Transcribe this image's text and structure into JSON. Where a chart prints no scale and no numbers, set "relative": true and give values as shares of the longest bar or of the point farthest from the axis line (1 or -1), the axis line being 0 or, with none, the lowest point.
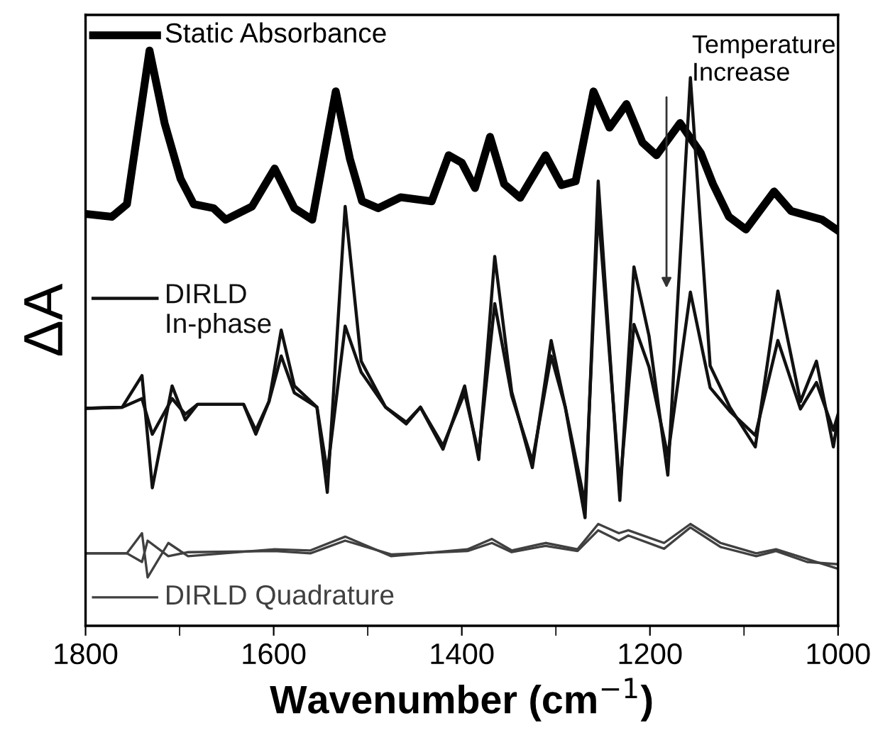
{
  "chart_data": {
    "type": "line",
    "relative": true,
    "legend": "left",
    "xlabel": "Wavenumber (cm$^{−1}$)",
    "ylabel": "ΔA",
    "xlim": [
      1800,
      1000
    ],
    "xticks": [
      1800,
      {
        "value": 1700,
        "label": null
      },
      1600,
      {
        "value": 1500,
        "label": null
      },
      1400,
      {
        "value": 1300,
        "label": null
      },
      1200,
      {
        "value": 1100,
        "label": null
      },
      1000
    ],
    "annotations": [
      "Temperature\nIncrease"
    ],
    "series": [
      {
        "name": "Static Absorbance",
        "color": "#000000",
        "x": [
          1800,
          1772,
          1756,
          1732,
          1716,
          1699,
          1685,
          1664,
          1651,
          1623,
          1599,
          1578,
          1559,
          1534,
          1519,
          1506,
          1489,
          1465,
          1432,
          1414,
          1400,
          1386,
          1370,
          1355,
          1338,
          1311,
          1294,
          1279,
          1260,
          1243,
          1225,
          1208,
          1193,
          1168,
          1146,
          1133,
          1116,
          1098,
          1068,
          1050,
          1017,
          1000
        ],
        "values": [
          0.716,
          0.711,
          0.733,
          1.0,
          0.874,
          0.777,
          0.733,
          0.726,
          0.706,
          0.729,
          0.795,
          0.726,
          0.706,
          0.929,
          0.812,
          0.738,
          0.726,
          0.745,
          0.738,
          0.818,
          0.805,
          0.761,
          0.85,
          0.768,
          0.744,
          0.818,
          0.766,
          0.773,
          0.929,
          0.866,
          0.907,
          0.84,
          0.818,
          0.874,
          0.822,
          0.768,
          0.711,
          0.689,
          0.755,
          0.721,
          0.706,
          0.687
        ]
      },
      {
        "name": "DIRLD\nIn-phase",
        "color": "#111111",
        "x": [
          1800,
          1761,
          1740,
          1729,
          1708,
          1694,
          1681,
          1632,
          1619,
          1605,
          1592,
          1578,
          1554,
          1543,
          1524,
          1507,
          1481,
          1459,
          1444,
          1420,
          1397,
          1382,
          1365,
          1347,
          1325,
          1305,
          1290,
          1269,
          1255,
          1232,
          1217,
          1201,
          1181,
          1157,
          1136,
          1115,
          1088,
          1064,
          1040,
          1023,
          1005,
          1000
        ],
        "values": [
          0.378,
          0.38,
          0.435,
          0.24,
          0.417,
          0.358,
          0.385,
          0.385,
          0.333,
          0.39,
          0.514,
          0.417,
          0.38,
          0.232,
          0.729,
          0.46,
          0.38,
          0.351,
          0.38,
          0.307,
          0.417,
          0.289,
          0.642,
          0.407,
          0.275,
          0.496,
          0.38,
          0.188,
          0.773,
          0.218,
          0.624,
          0.504,
          0.262,
          0.953,
          0.452,
          0.38,
          0.311,
          0.582,
          0.39,
          0.46,
          0.311,
          0.363
        ]
      },
      {
        "color": "#111111",
        "x": [
          1800,
          1761,
          1740,
          1729,
          1708,
          1694,
          1681,
          1632,
          1619,
          1605,
          1592,
          1578,
          1554,
          1543,
          1524,
          1507,
          1481,
          1459,
          1444,
          1420,
          1397,
          1382,
          1365,
          1347,
          1325,
          1305,
          1290,
          1269,
          1255,
          1232,
          1217,
          1201,
          1181,
          1157,
          1136,
          1115,
          1088,
          1064,
          1040,
          1023,
          1005,
          1000
        ],
        "values": [
          0.378,
          0.38,
          0.395,
          0.333,
          0.395,
          0.368,
          0.385,
          0.385,
          0.34,
          0.39,
          0.469,
          0.405,
          0.38,
          0.267,
          0.521,
          0.441,
          0.38,
          0.354,
          0.38,
          0.313,
          0.405,
          0.299,
          0.56,
          0.4,
          0.286,
          0.469,
          0.38,
          0.212,
          0.725,
          0.24,
          0.524,
          0.45,
          0.295,
          0.58,
          0.414,
          0.373,
          0.331,
          0.496,
          0.377,
          0.423,
          0.34,
          0.368
        ]
      },
      {
        "name": "DIRLD Quadrature",
        "color": "#404040",
        "x": [
          1800,
          1756,
          1740,
          1734,
          1712,
          1691,
          1599,
          1561,
          1524,
          1475,
          1394,
          1368,
          1347,
          1311,
          1277,
          1255,
          1233,
          1223,
          1185,
          1157,
          1125,
          1087,
          1066,
          1033,
          1000
        ],
        "values": [
          0.126,
          0.126,
          0.161,
          0.084,
          0.144,
          0.121,
          0.133,
          0.131,
          0.155,
          0.121,
          0.133,
          0.151,
          0.131,
          0.144,
          0.133,
          0.177,
          0.161,
          0.166,
          0.144,
          0.177,
          0.144,
          0.126,
          0.133,
          0.116,
          0.099
        ]
      },
      {
        "color": "#404040",
        "x": [
          1800,
          1756,
          1740,
          1734,
          1712,
          1691,
          1599,
          1561,
          1524,
          1475,
          1394,
          1368,
          1347,
          1311,
          1277,
          1255,
          1233,
          1223,
          1185,
          1157,
          1125,
          1087,
          1066,
          1033,
          1000
        ],
        "values": [
          0.126,
          0.126,
          0.111,
          0.148,
          0.121,
          0.128,
          0.13,
          0.126,
          0.148,
          0.124,
          0.13,
          0.144,
          0.128,
          0.139,
          0.13,
          0.166,
          0.148,
          0.157,
          0.134,
          0.171,
          0.137,
          0.121,
          0.13,
          0.111,
          0.107
        ]
      }
    ]
  }
}
